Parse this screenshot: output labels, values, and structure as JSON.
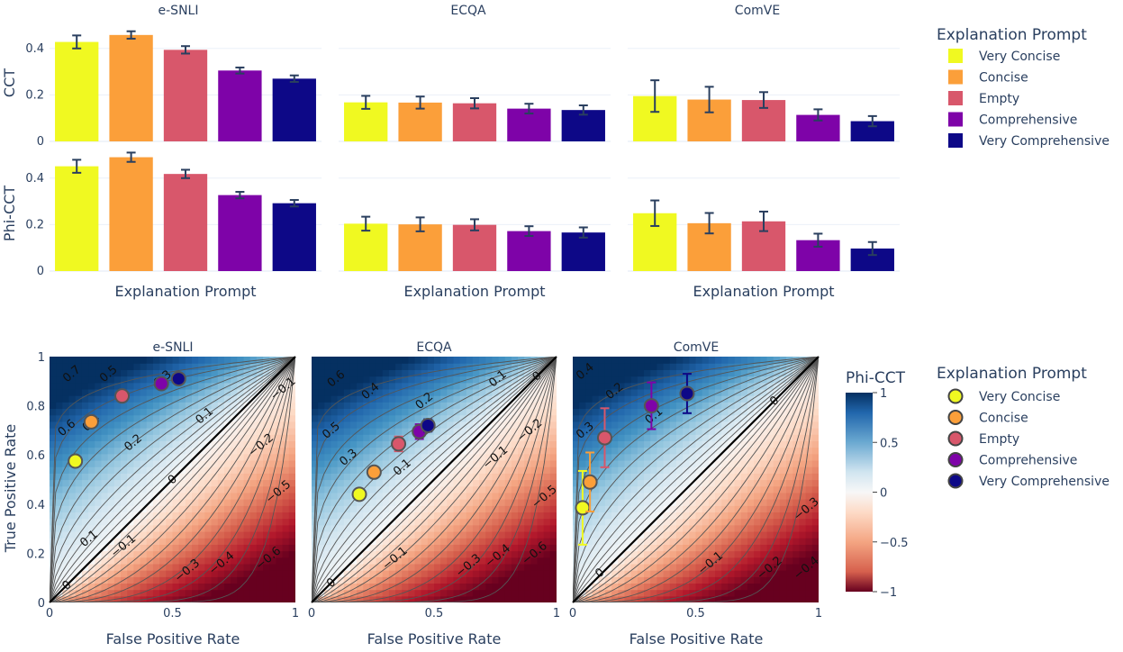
{
  "colors": {
    "very_concise": "#f0f921",
    "concise": "#fb9f3a",
    "empty": "#d8576b",
    "comprehensive": "#7e03a8",
    "very_comprehensive": "#0d0887",
    "error_bar_top": "#2a3f5f"
  },
  "legend_top": {
    "title": "Explanation Prompt",
    "items": [
      "Very Concise",
      "Concise",
      "Empty",
      "Comprehensive",
      "Very Comprehensive"
    ]
  },
  "legend_bottom": {
    "title": "Explanation Prompt",
    "items": [
      "Very Concise",
      "Concise",
      "Empty",
      "Comprehensive",
      "Very Comprehensive"
    ]
  },
  "colorbar": {
    "title": "Phi-CCT",
    "ticks": [
      "1",
      "0.5",
      "0",
      "−0.5",
      "−1"
    ]
  },
  "chart_data": [
    {
      "type": "bar",
      "title": "e-SNLI",
      "categories": [
        "Very Concise",
        "Concise",
        "Empty",
        "Comprehensive",
        "Very Comprehensive"
      ],
      "ylabel": "CCT",
      "xlabel": "",
      "ylim": [
        0,
        0.5
      ],
      "yticks": [
        "0",
        "0.2",
        "0.4"
      ],
      "values": [
        0.428,
        0.458,
        0.394,
        0.305,
        0.27
      ],
      "errors": [
        0.028,
        0.016,
        0.016,
        0.013,
        0.014
      ]
    },
    {
      "type": "bar",
      "title": "ECQA",
      "categories": [
        "Very Concise",
        "Concise",
        "Empty",
        "Comprehensive",
        "Very Comprehensive"
      ],
      "ylabel": "",
      "xlabel": "",
      "ylim": [
        0,
        0.5
      ],
      "values": [
        0.168,
        0.167,
        0.164,
        0.141,
        0.135
      ],
      "errors": [
        0.028,
        0.026,
        0.022,
        0.021,
        0.02
      ]
    },
    {
      "type": "bar",
      "title": "ComVE",
      "categories": [
        "Very Concise",
        "Concise",
        "Empty",
        "Comprehensive",
        "Very Comprehensive"
      ],
      "ylabel": "",
      "xlabel": "",
      "ylim": [
        0,
        0.5
      ],
      "values": [
        0.195,
        0.18,
        0.178,
        0.114,
        0.087
      ],
      "errors": [
        0.068,
        0.055,
        0.034,
        0.024,
        0.022
      ]
    },
    {
      "type": "bar",
      "title": "",
      "categories": [
        "Very Concise",
        "Concise",
        "Empty",
        "Comprehensive",
        "Very Comprehensive"
      ],
      "ylabel": "Phi-CCT",
      "xlabel": "Explanation Prompt",
      "ylim": [
        0,
        0.5
      ],
      "yticks": [
        "0",
        "0.2",
        "0.4"
      ],
      "values": [
        0.451,
        0.49,
        0.418,
        0.327,
        0.292
      ],
      "errors": [
        0.028,
        0.02,
        0.018,
        0.014,
        0.014
      ]
    },
    {
      "type": "bar",
      "title": "",
      "categories": [
        "Very Concise",
        "Concise",
        "Empty",
        "Comprehensive",
        "Very Comprehensive"
      ],
      "ylabel": "",
      "xlabel": "Explanation Prompt",
      "ylim": [
        0,
        0.5
      ],
      "values": [
        0.204,
        0.201,
        0.199,
        0.172,
        0.166
      ],
      "errors": [
        0.03,
        0.03,
        0.024,
        0.021,
        0.022
      ]
    },
    {
      "type": "bar",
      "title": "",
      "categories": [
        "Very Concise",
        "Concise",
        "Empty",
        "Comprehensive",
        "Very Comprehensive"
      ],
      "ylabel": "",
      "xlabel": "Explanation Prompt",
      "ylim": [
        0,
        0.5
      ],
      "values": [
        0.249,
        0.206,
        0.214,
        0.133,
        0.097
      ],
      "errors": [
        0.055,
        0.044,
        0.042,
        0.028,
        0.028
      ]
    },
    {
      "type": "scatter",
      "title": "e-SNLI",
      "xlabel": "False Positive Rate",
      "ylabel": "True Positive Rate",
      "xlim": [
        0,
        1
      ],
      "ylim": [
        0,
        1
      ],
      "xticks": [
        "0",
        "0.5",
        "1"
      ],
      "yticks": [
        "0",
        "0.2",
        "0.4",
        "0.6",
        "0.8",
        "1"
      ],
      "contour_labels": [
        {
          "text": "0.7",
          "x": 0.09,
          "y": 0.93
        },
        {
          "text": "0.5",
          "x": 0.24,
          "y": 0.93
        },
        {
          "text": "0.4",
          "x": 0.17,
          "y": 0.73
        },
        {
          "text": "0.6",
          "x": 0.07,
          "y": 0.71
        },
        {
          "text": "0.3",
          "x": 0.46,
          "y": 0.91
        },
        {
          "text": "0.2",
          "x": 0.34,
          "y": 0.65
        },
        {
          "text": "0.1",
          "x": 0.63,
          "y": 0.76
        },
        {
          "text": "0.1",
          "x": 0.16,
          "y": 0.26
        },
        {
          "text": "0",
          "x": 0.5,
          "y": 0.5
        },
        {
          "text": "0",
          "x": 0.07,
          "y": 0.07
        },
        {
          "text": "−0.1",
          "x": 0.95,
          "y": 0.87
        },
        {
          "text": "−0.1",
          "x": 0.3,
          "y": 0.23
        },
        {
          "text": "−0.2",
          "x": 0.86,
          "y": 0.64
        },
        {
          "text": "−0.3",
          "x": 0.56,
          "y": 0.13
        },
        {
          "text": "−0.4",
          "x": 0.7,
          "y": 0.16
        },
        {
          "text": "−0.5",
          "x": 0.93,
          "y": 0.45
        },
        {
          "text": "−0.6",
          "x": 0.89,
          "y": 0.18
        }
      ],
      "points": [
        {
          "name": "Very Concise",
          "x": 0.105,
          "y": 0.575,
          "xerr": 0,
          "yerr": 0
        },
        {
          "name": "Concise",
          "x": 0.17,
          "y": 0.735,
          "xerr": 0,
          "yerr": 0
        },
        {
          "name": "Empty",
          "x": 0.295,
          "y": 0.84,
          "xerr": 0,
          "yerr": 0
        },
        {
          "name": "Comprehensive",
          "x": 0.455,
          "y": 0.89,
          "xerr": 0.01,
          "yerr": 0
        },
        {
          "name": "Very Comprehensive",
          "x": 0.525,
          "y": 0.91,
          "xerr": 0.01,
          "yerr": 0
        }
      ]
    },
    {
      "type": "scatter",
      "title": "ECQA",
      "xlabel": "False Positive Rate",
      "ylabel": "",
      "xlim": [
        0,
        1
      ],
      "ylim": [
        0,
        1
      ],
      "xticks": [
        "0",
        "0.5",
        "1"
      ],
      "contour_labels": [
        {
          "text": "0.6",
          "x": 0.1,
          "y": 0.91
        },
        {
          "text": "0.4",
          "x": 0.24,
          "y": 0.86
        },
        {
          "text": "0.2",
          "x": 0.46,
          "y": 0.82
        },
        {
          "text": "0.1",
          "x": 0.76,
          "y": 0.91
        },
        {
          "text": "0",
          "x": 0.92,
          "y": 0.92
        },
        {
          "text": "0.5",
          "x": 0.08,
          "y": 0.7
        },
        {
          "text": "0.3",
          "x": 0.15,
          "y": 0.59
        },
        {
          "text": "0.1",
          "x": 0.37,
          "y": 0.55
        },
        {
          "text": "−0.1",
          "x": 0.75,
          "y": 0.59
        },
        {
          "text": "−0.2",
          "x": 0.89,
          "y": 0.7
        },
        {
          "text": "−0.1",
          "x": 0.34,
          "y": 0.18
        },
        {
          "text": "0",
          "x": 0.08,
          "y": 0.08
        },
        {
          "text": "−0.3",
          "x": 0.64,
          "y": 0.15
        },
        {
          "text": "−0.4",
          "x": 0.76,
          "y": 0.19
        },
        {
          "text": "−0.5",
          "x": 0.95,
          "y": 0.43
        },
        {
          "text": "−0.6",
          "x": 0.91,
          "y": 0.2
        }
      ],
      "points": [
        {
          "name": "Very Concise",
          "x": 0.195,
          "y": 0.44,
          "xerr": 0,
          "yerr": 0.01
        },
        {
          "name": "Concise",
          "x": 0.255,
          "y": 0.53,
          "xerr": 0.015,
          "yerr": 0.02
        },
        {
          "name": "Empty",
          "x": 0.355,
          "y": 0.645,
          "xerr": 0,
          "yerr": 0.03
        },
        {
          "name": "Comprehensive",
          "x": 0.44,
          "y": 0.695,
          "xerr": 0,
          "yerr": 0.03
        },
        {
          "name": "Very Comprehensive",
          "x": 0.475,
          "y": 0.72,
          "xerr": 0.015,
          "yerr": 0.025
        }
      ]
    },
    {
      "type": "scatter",
      "title": "ComVE",
      "xlabel": "False Positive Rate",
      "ylabel": "",
      "xlim": [
        0,
        1
      ],
      "ylim": [
        0,
        1
      ],
      "xticks": [
        "0",
        "0.5",
        "1"
      ],
      "contour_labels": [
        {
          "text": "0.4",
          "x": 0.05,
          "y": 0.94
        },
        {
          "text": "0.2",
          "x": 0.17,
          "y": 0.86
        },
        {
          "text": "0.1",
          "x": 0.33,
          "y": 0.76
        },
        {
          "text": "0",
          "x": 0.82,
          "y": 0.82
        },
        {
          "text": "0.3",
          "x": 0.05,
          "y": 0.7
        },
        {
          "text": "0",
          "x": 0.11,
          "y": 0.12
        },
        {
          "text": "−0.1",
          "x": 0.56,
          "y": 0.16
        },
        {
          "text": "−0.2",
          "x": 0.8,
          "y": 0.14
        },
        {
          "text": "−0.3",
          "x": 0.95,
          "y": 0.38
        },
        {
          "text": "−0.4",
          "x": 0.95,
          "y": 0.14
        }
      ],
      "points": [
        {
          "name": "Very Concise",
          "x": 0.04,
          "y": 0.385,
          "xerr": 0,
          "yerr": 0.15
        },
        {
          "name": "Concise",
          "x": 0.07,
          "y": 0.49,
          "xerr": 0.02,
          "yerr": 0.12
        },
        {
          "name": "Empty",
          "x": 0.13,
          "y": 0.67,
          "xerr": 0,
          "yerr": 0.12
        },
        {
          "name": "Comprehensive",
          "x": 0.32,
          "y": 0.8,
          "xerr": 0,
          "yerr": 0.095
        },
        {
          "name": "Very Comprehensive",
          "x": 0.465,
          "y": 0.85,
          "xerr": 0,
          "yerr": 0.08
        }
      ]
    }
  ]
}
